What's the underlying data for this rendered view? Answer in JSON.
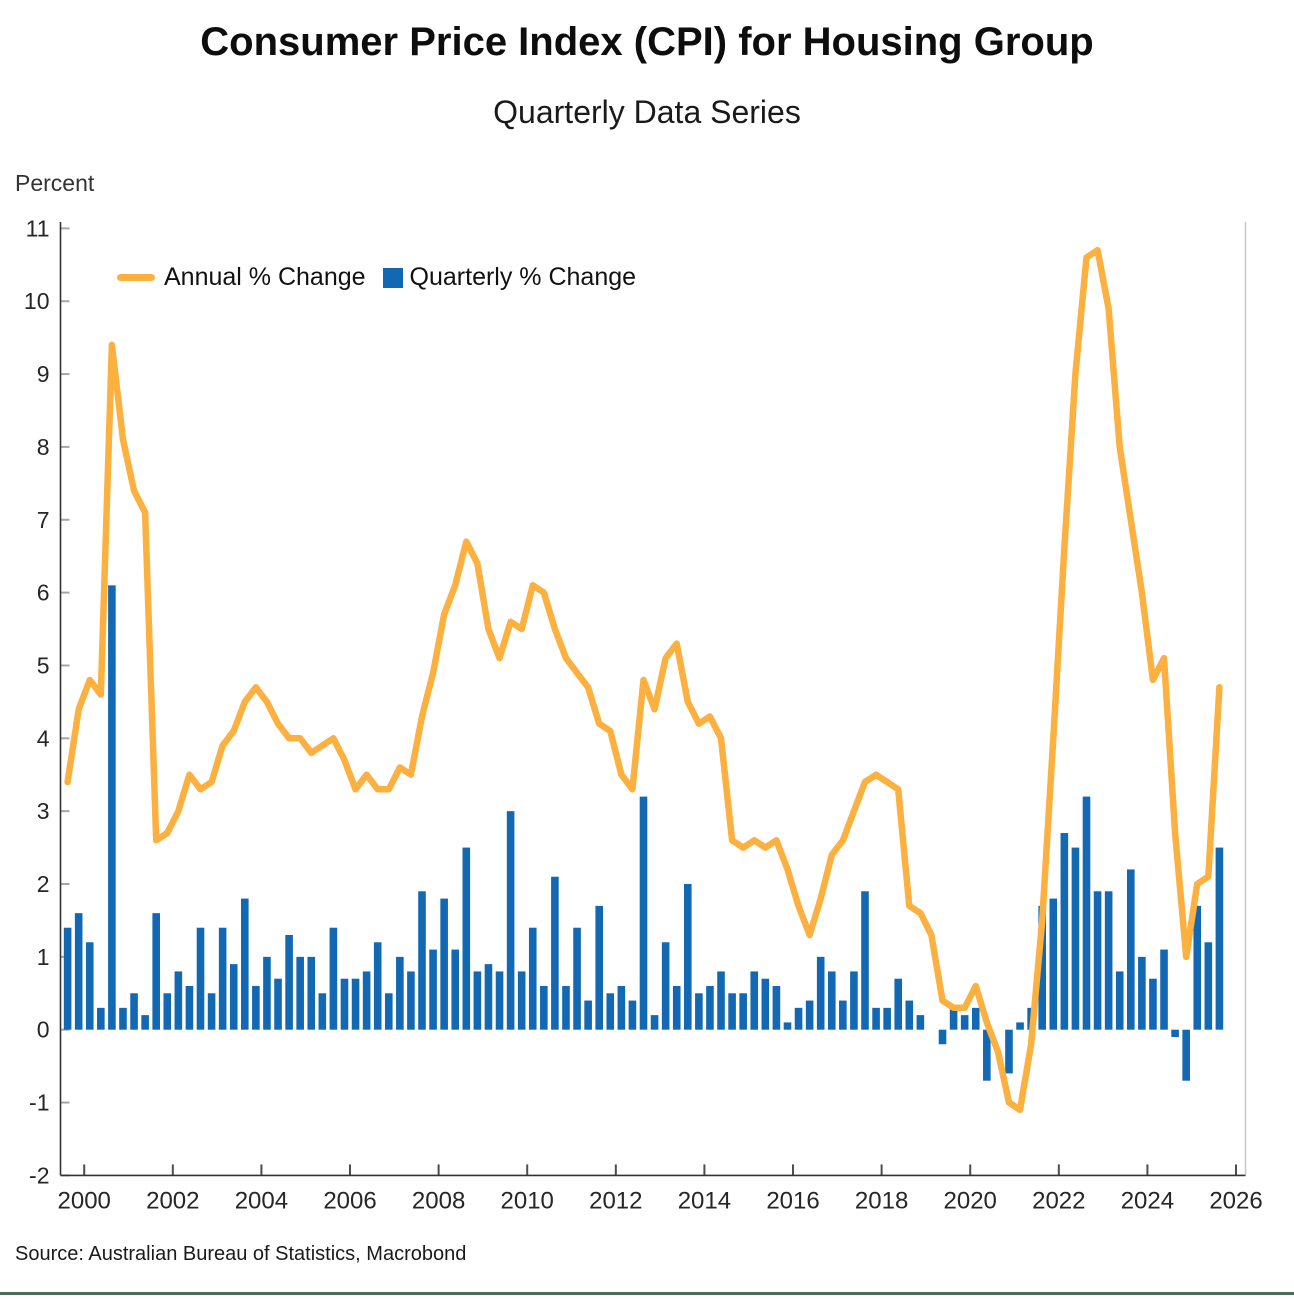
{
  "chart_data": {
    "type": "bar+line",
    "title": "Consumer Price Index (CPI) for Housing Group",
    "subtitle": "Quarterly Data Series",
    "ylabel": "Percent",
    "source": "Source: Australian Bureau of Statistics, Macrobond",
    "ylim": [
      -2,
      11
    ],
    "yticks": [
      -2,
      -1,
      0,
      1,
      2,
      3,
      4,
      5,
      6,
      7,
      8,
      9,
      10,
      11
    ],
    "xtick_years": [
      2000,
      2002,
      2004,
      2006,
      2008,
      2010,
      2012,
      2014,
      2016,
      2018,
      2020,
      2022,
      2024,
      2026
    ],
    "grid": false,
    "legend_position": "top-left-inside",
    "colors": {
      "annual_line": "#FBB040",
      "quarterly_bar": "#1268B3",
      "axis": "#333333",
      "y_tick": "#A6A6A6",
      "x_tick": "#4D4D4D",
      "right_border": "#C8C8C8",
      "tick_label": "#262626",
      "bottom_divider": "#4A6D5E"
    },
    "categories": [
      "1999 Q3",
      "1999 Q4",
      "2000 Q1",
      "2000 Q2",
      "2000 Q3",
      "2000 Q4",
      "2001 Q1",
      "2001 Q2",
      "2001 Q3",
      "2001 Q4",
      "2002 Q1",
      "2002 Q2",
      "2002 Q3",
      "2002 Q4",
      "2003 Q1",
      "2003 Q2",
      "2003 Q3",
      "2003 Q4",
      "2004 Q1",
      "2004 Q2",
      "2004 Q3",
      "2004 Q4",
      "2005 Q1",
      "2005 Q2",
      "2005 Q3",
      "2005 Q4",
      "2006 Q1",
      "2006 Q2",
      "2006 Q3",
      "2006 Q4",
      "2007 Q1",
      "2007 Q2",
      "2007 Q3",
      "2007 Q4",
      "2008 Q1",
      "2008 Q2",
      "2008 Q3",
      "2008 Q4",
      "2009 Q1",
      "2009 Q2",
      "2009 Q3",
      "2009 Q4",
      "2010 Q1",
      "2010 Q2",
      "2010 Q3",
      "2010 Q4",
      "2011 Q1",
      "2011 Q2",
      "2011 Q3",
      "2011 Q4",
      "2012 Q1",
      "2012 Q2",
      "2012 Q3",
      "2012 Q4",
      "2013 Q1",
      "2013 Q2",
      "2013 Q3",
      "2013 Q4",
      "2014 Q1",
      "2014 Q2",
      "2014 Q3",
      "2014 Q4",
      "2015 Q1",
      "2015 Q2",
      "2015 Q3",
      "2015 Q4",
      "2016 Q1",
      "2016 Q2",
      "2016 Q3",
      "2016 Q4",
      "2017 Q1",
      "2017 Q2",
      "2017 Q3",
      "2017 Q4",
      "2018 Q1",
      "2018 Q2",
      "2018 Q3",
      "2018 Q4",
      "2019 Q1",
      "2019 Q2",
      "2019 Q3",
      "2019 Q4",
      "2020 Q1",
      "2020 Q2",
      "2020 Q3",
      "2020 Q4",
      "2021 Q1",
      "2021 Q2",
      "2021 Q3",
      "2021 Q4",
      "2022 Q1",
      "2022 Q2",
      "2022 Q3",
      "2022 Q4",
      "2023 Q1",
      "2023 Q2",
      "2023 Q3",
      "2023 Q4",
      "2024 Q1",
      "2024 Q2",
      "2024 Q3",
      "2024 Q4",
      "2025 Q1",
      "2025 Q2",
      "2025 Q3"
    ],
    "series": [
      {
        "name": "Annual % Change",
        "type": "line",
        "color": "#FBB040",
        "values": [
          3.4,
          4.4,
          4.8,
          4.6,
          9.4,
          8.1,
          7.4,
          7.1,
          2.6,
          2.7,
          3.0,
          3.5,
          3.3,
          3.4,
          3.9,
          4.1,
          4.5,
          4.7,
          4.5,
          4.2,
          4.0,
          4.0,
          3.8,
          3.9,
          4.0,
          3.7,
          3.3,
          3.5,
          3.3,
          3.3,
          3.6,
          3.5,
          4.3,
          4.9,
          5.7,
          6.1,
          6.7,
          6.4,
          5.5,
          5.1,
          5.6,
          5.5,
          6.1,
          6.0,
          5.5,
          5.1,
          4.9,
          4.7,
          4.2,
          4.1,
          3.5,
          3.3,
          4.8,
          4.4,
          5.1,
          5.3,
          4.5,
          4.2,
          4.3,
          4.0,
          2.6,
          2.5,
          2.6,
          2.5,
          2.6,
          2.2,
          1.7,
          1.3,
          1.8,
          2.4,
          2.6,
          3.0,
          3.4,
          3.5,
          3.4,
          3.3,
          1.7,
          1.6,
          1.3,
          0.4,
          0.3,
          0.3,
          0.6,
          0.1,
          -0.3,
          -1.0,
          -1.1,
          -0.2,
          1.5,
          4.0,
          6.6,
          9.0,
          10.6,
          10.7,
          9.9,
          8.0,
          7.0,
          6.0,
          4.8,
          5.1,
          2.7,
          1.0,
          2.0,
          2.1,
          4.7
        ]
      },
      {
        "name": "Quarterly % Change",
        "type": "bar",
        "color": "#1268B3",
        "values": [
          1.4,
          1.6,
          1.2,
          0.3,
          6.1,
          0.3,
          0.5,
          0.2,
          1.6,
          0.5,
          0.8,
          0.6,
          1.4,
          0.5,
          1.4,
          0.9,
          1.8,
          0.6,
          1.0,
          0.7,
          1.3,
          1.0,
          1.0,
          0.5,
          1.4,
          0.7,
          0.7,
          0.8,
          1.2,
          0.5,
          1.0,
          0.8,
          1.9,
          1.1,
          1.8,
          1.1,
          2.5,
          0.8,
          0.9,
          0.8,
          3.0,
          0.8,
          1.4,
          0.6,
          2.1,
          0.6,
          1.4,
          0.4,
          1.7,
          0.5,
          0.6,
          0.4,
          3.2,
          0.2,
          1.2,
          0.6,
          2.0,
          0.5,
          0.6,
          0.8,
          0.5,
          0.5,
          0.8,
          0.7,
          0.6,
          0.1,
          0.3,
          0.4,
          1.0,
          0.8,
          0.4,
          0.8,
          1.9,
          0.3,
          0.3,
          0.7,
          0.4,
          0.2,
          0.0,
          -0.2,
          0.3,
          0.2,
          0.3,
          -0.7,
          0.0,
          -0.6,
          0.1,
          0.3,
          1.7,
          1.8,
          2.7,
          2.5,
          3.2,
          1.9,
          1.9,
          0.8,
          2.2,
          1.0,
          0.7,
          1.1,
          -0.1,
          -0.7,
          1.7,
          1.2,
          2.5
        ]
      }
    ]
  }
}
